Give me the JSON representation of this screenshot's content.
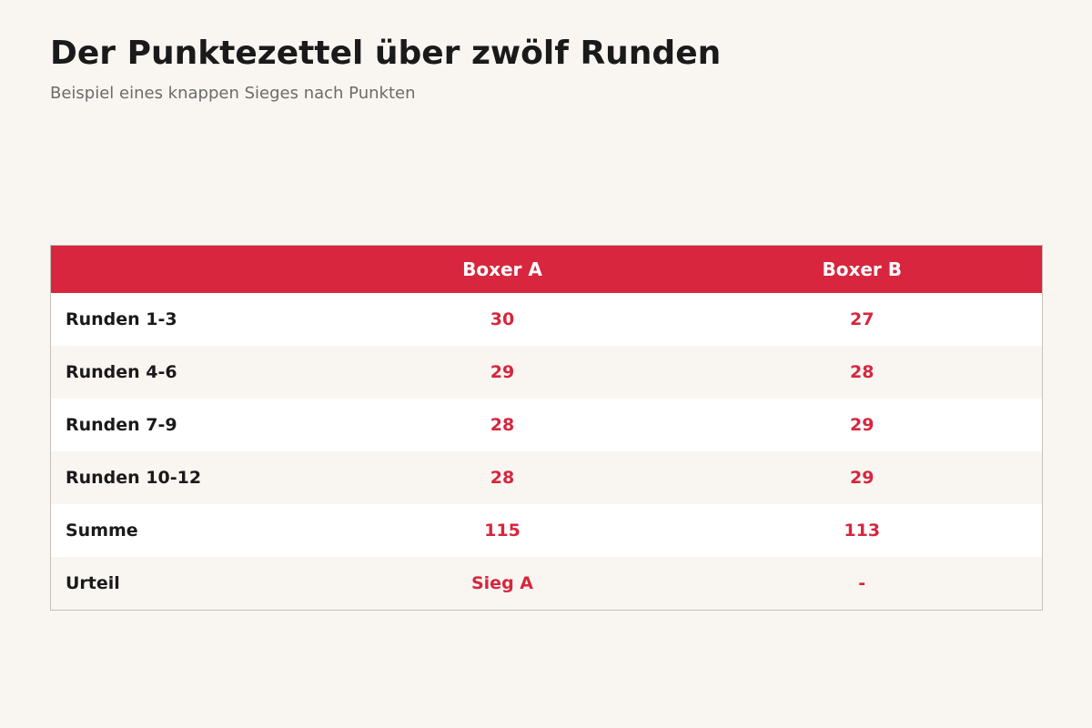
{
  "title": "Der Punktezettel über zwölf Runden",
  "subtitle": "Beispiel eines knappen Sieges nach Punkten",
  "colors": {
    "accent": "#d7263d",
    "background": "#f9f6f2",
    "row_alt": "#ffffff",
    "text": "#1a1a1a",
    "subtitle": "#6b6b6b"
  },
  "chart_data": {
    "type": "table",
    "columns": [
      "",
      "Boxer A",
      "Boxer B"
    ],
    "rows": [
      {
        "label": "Runden 1-3",
        "values": [
          "30",
          "27"
        ]
      },
      {
        "label": "Runden 4-6",
        "values": [
          "29",
          "28"
        ]
      },
      {
        "label": "Runden 7-9",
        "values": [
          "28",
          "29"
        ]
      },
      {
        "label": "Runden 10-12",
        "values": [
          "28",
          "29"
        ]
      },
      {
        "label": "Summe",
        "values": [
          "115",
          "113"
        ]
      },
      {
        "label": "Urteil",
        "values": [
          "Sieg A",
          "-"
        ]
      }
    ]
  }
}
